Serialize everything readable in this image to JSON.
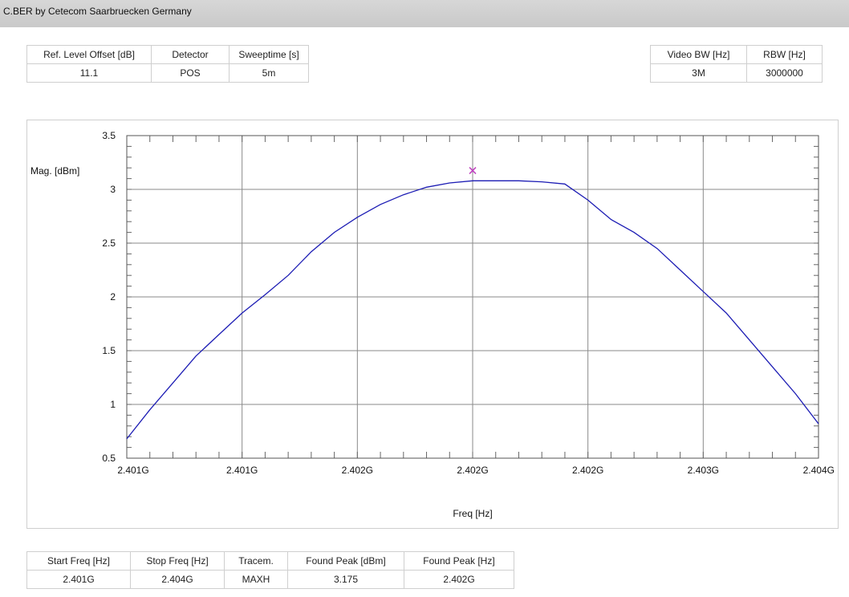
{
  "window": {
    "title": "C.BER by Cetecom Saarbruecken Germany"
  },
  "top_left_params": {
    "headers": [
      "Ref. Level Offset [dB]",
      "Detector",
      "Sweeptime [s]"
    ],
    "values": [
      "11.1",
      "POS",
      "5m"
    ]
  },
  "top_right_params": {
    "headers": [
      "Video BW [Hz]",
      "RBW [Hz]"
    ],
    "values": [
      "3M",
      "3000000"
    ]
  },
  "bottom_params": {
    "headers": [
      "Start Freq [Hz]",
      "Stop Freq [Hz]",
      "Tracem.",
      "Found Peak [dBm]",
      "Found Peak [Hz]"
    ],
    "values": [
      "2.401G",
      "2.404G",
      "MAXH",
      "3.175",
      "2.402G"
    ]
  },
  "colors": {
    "trace": "#1c1cb4",
    "marker": "#c040c0",
    "grid": "#8a8a8a"
  },
  "chart_data": {
    "type": "line",
    "title": "",
    "xlabel": "Freq [Hz]",
    "ylabel": "Mag. [dBm]",
    "xlim": [
      2401000000,
      2404000000
    ],
    "ylim": [
      0.5,
      3.5
    ],
    "grid": true,
    "x_tick_labels": [
      "2.401G",
      "2.401G",
      "2.402G",
      "2.402G",
      "2.402G",
      "2.403G",
      "2.404G"
    ],
    "y_tick_labels": [
      "0.5",
      "1",
      "1.5",
      "2",
      "2.5",
      "3",
      "3.5"
    ],
    "series": [
      {
        "x": [
          2401000000,
          2401100000,
          2401200000,
          2401300000,
          2401400000,
          2401500000,
          2401600000,
          2401700000,
          2401800000,
          2401900000,
          2402000000,
          2402100000,
          2402200000,
          2402300000,
          2402400000,
          2402500000,
          2402600000,
          2402700000,
          2402800000,
          2402900000,
          2403000000,
          2403100000,
          2403200000,
          2403300000,
          2403400000,
          2403500000,
          2403600000,
          2403700000,
          2403800000,
          2403900000,
          2404000000
        ],
        "values": [
          0.68,
          0.95,
          1.2,
          1.45,
          1.65,
          1.85,
          2.02,
          2.2,
          2.42,
          2.6,
          2.74,
          2.86,
          2.95,
          3.02,
          3.06,
          3.08,
          3.08,
          3.08,
          3.07,
          3.05,
          2.9,
          2.72,
          2.6,
          2.45,
          2.25,
          2.05,
          1.85,
          1.6,
          1.35,
          1.1,
          0.82
        ]
      }
    ],
    "marker": {
      "x": 2402500000,
      "y": 3.175
    }
  }
}
